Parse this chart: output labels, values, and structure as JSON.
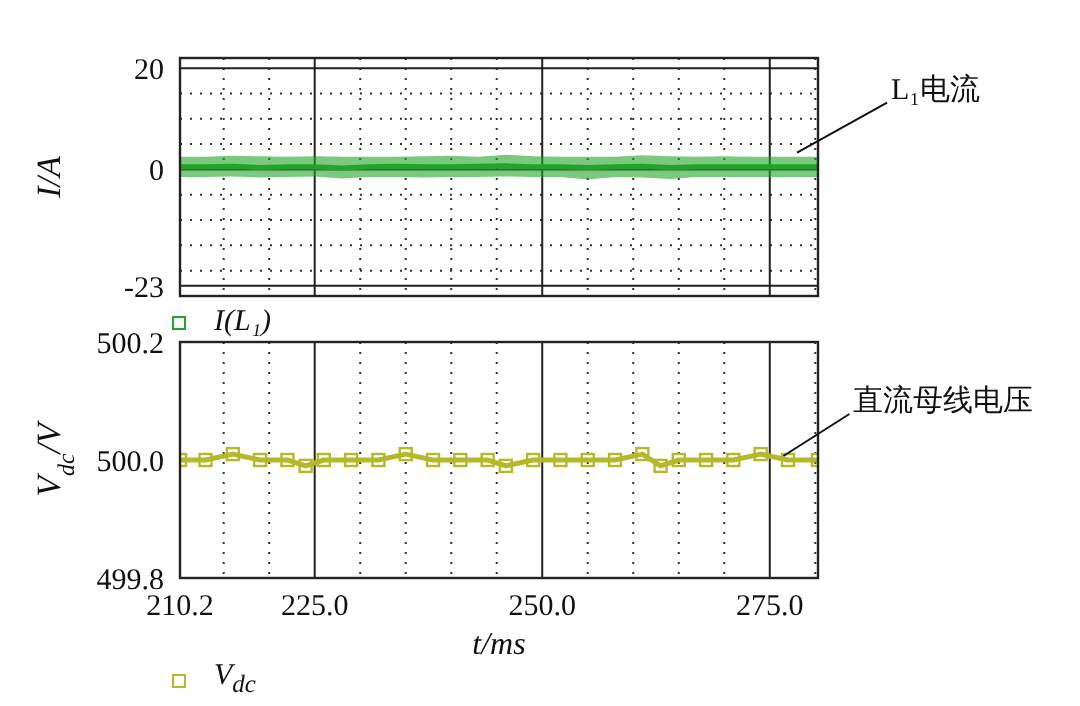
{
  "chart_data": [
    {
      "type": "line",
      "ylabel": "I/A",
      "xlim": [
        210.2,
        280.3
      ],
      "ylim": [
        -25,
        22
      ],
      "xticks": [
        210.2,
        {
          "value": 215,
          "label": null
        },
        {
          "value": 220,
          "label": null
        },
        225,
        {
          "value": 230,
          "label": null
        },
        {
          "value": 235,
          "label": null
        },
        {
          "value": 240,
          "label": null
        },
        {
          "value": 245,
          "label": null
        },
        250,
        {
          "value": 255,
          "label": null
        },
        {
          "value": 260,
          "label": null
        },
        {
          "value": 265,
          "label": null
        },
        {
          "value": 270,
          "label": null
        },
        275,
        {
          "value": 280,
          "label": null
        }
      ],
      "yticks": [
        20,
        {
          "value": 15,
          "label": null
        },
        {
          "value": 10,
          "label": null
        },
        {
          "value": 5,
          "label": null
        },
        0,
        {
          "value": -5,
          "label": null
        },
        {
          "value": -10,
          "label": null
        },
        {
          "value": -15,
          "label": null
        },
        {
          "value": -20,
          "label": null
        },
        -23
      ],
      "tick_labels": "y",
      "grid": true,
      "legend": "bottom",
      "x": [
        210.2,
        213,
        216,
        219,
        222,
        225,
        228,
        231,
        234,
        237,
        240,
        243,
        246,
        249,
        252,
        255,
        258,
        261,
        264,
        267,
        270,
        273,
        276,
        280.3
      ],
      "series": [
        {
          "name": "I(L₁)",
          "color": "#22a52a",
          "values": [
            0.5,
            0.5,
            0.6,
            0.4,
            0.5,
            0.5,
            0.3,
            0.5,
            0.6,
            0.5,
            0.5,
            0.6,
            0.7,
            0.5,
            0.5,
            0.4,
            0.5,
            0.6,
            0.4,
            0.5,
            0.5,
            0.5,
            0.5,
            0.5
          ],
          "lower": [
            -1.5,
            -1.5,
            -1.4,
            -1.6,
            -1.5,
            -1.4,
            -1.8,
            -1.5,
            -1.5,
            -1.6,
            -1.5,
            -1.5,
            -1.4,
            -1.5,
            -1.5,
            -2,
            -1.5,
            -1.6,
            -1.9,
            -1.5,
            -1.5,
            -1.5,
            -1.5,
            -1.5
          ],
          "upper": [
            2.5,
            2.5,
            2.7,
            2.6,
            2.5,
            2.6,
            2.5,
            2.5,
            2.5,
            2.6,
            2.7,
            2.5,
            2.9,
            2.6,
            2.5,
            2.5,
            2.5,
            2.8,
            2.6,
            2.5,
            2.6,
            2.5,
            2.5,
            2.5
          ]
        }
      ],
      "annotations": [
        {
          "text": "L₁电流",
          "x": 278,
          "y": 2.5
        }
      ]
    },
    {
      "type": "line",
      "ylabel": "V$_{dc}$/V",
      "xlabel": "t/ms",
      "xlim": [
        210.2,
        280.3
      ],
      "ylim": [
        499.8,
        500.2
      ],
      "xticks": [
        210.2,
        {
          "value": 215,
          "label": null
        },
        {
          "value": 220,
          "label": null
        },
        {
          "value": 225,
          "label": "225.0"
        },
        {
          "value": 230,
          "label": null
        },
        {
          "value": 235,
          "label": null
        },
        {
          "value": 240,
          "label": null
        },
        {
          "value": 245,
          "label": null
        },
        {
          "value": 250,
          "label": "250.0"
        },
        {
          "value": 255,
          "label": null
        },
        {
          "value": 260,
          "label": null
        },
        {
          "value": 265,
          "label": null
        },
        {
          "value": 270,
          "label": null
        },
        {
          "value": 275,
          "label": "275.0"
        },
        {
          "value": 280,
          "label": null
        }
      ],
      "yticks": [
        499.8,
        {
          "value": 500,
          "label": "500.0"
        },
        500.2
      ],
      "grid": "x",
      "legend": "bottom",
      "marker": "square",
      "line_style": "solid",
      "x": [
        210.2,
        213,
        216,
        219,
        222,
        224,
        226,
        229,
        232,
        235,
        238,
        241,
        244,
        246,
        249,
        252,
        255,
        258,
        261,
        263,
        265,
        268,
        271,
        274,
        277,
        280.3
      ],
      "series": [
        {
          "name": "V$_{dc}$",
          "color": "#b4b82a",
          "values": [
            500.0,
            500.0,
            500.01,
            500.0,
            500.0,
            499.99,
            500.0,
            500.0,
            500.0,
            500.01,
            500.0,
            500.0,
            500.0,
            499.99,
            500.0,
            500.0,
            500.0,
            500.0,
            500.01,
            499.99,
            500.0,
            500.0,
            500.0,
            500.01,
            500.0,
            500.0
          ]
        }
      ],
      "annotations": [
        {
          "text": "直流母线电压",
          "x": 276.5,
          "y": 500.0
        }
      ]
    }
  ]
}
